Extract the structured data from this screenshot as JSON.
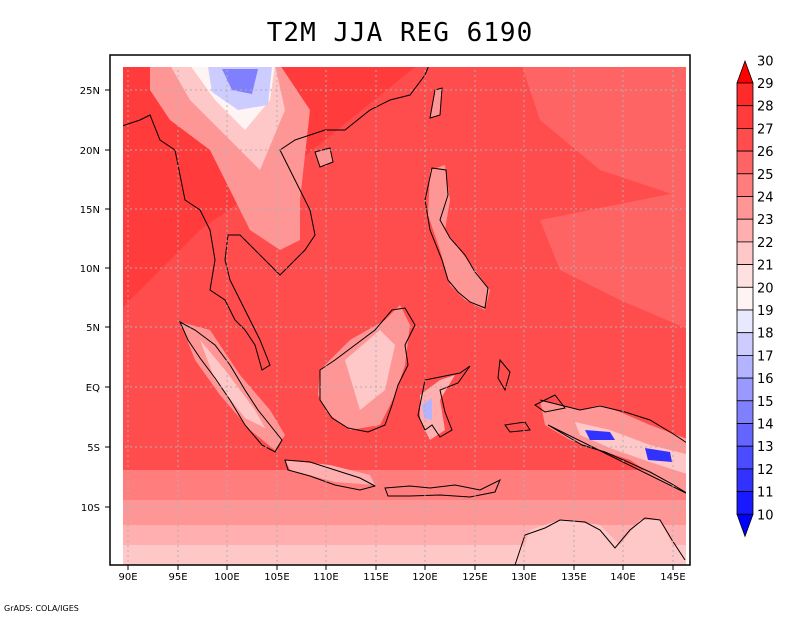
{
  "title": "T2M JJA REG 6190",
  "credit": "GrADS: COLA/IGES",
  "map": {
    "lon_labels": [
      "90E",
      "95E",
      "100E",
      "105E",
      "110E",
      "115E",
      "120E",
      "125E",
      "130E",
      "135E",
      "140E",
      "145E"
    ],
    "lat_labels": [
      "25N",
      "20N",
      "15N",
      "10N",
      "5N",
      "EQ",
      "5S",
      "10S"
    ],
    "colorbar_labels": [
      "30",
      "29",
      "28",
      "27",
      "26",
      "25",
      "24",
      "23",
      "22",
      "21",
      "20",
      "19",
      "18",
      "17",
      "16",
      "15",
      "14",
      "13",
      "12",
      "11",
      "10"
    ],
    "colors": {
      "c29": "#ff2a2a",
      "c28": "#ff3b3b",
      "c27": "#ff4c4c",
      "c26": "#ff6464",
      "c25": "#ff7d7d",
      "c24": "#ff9696",
      "c23": "#ffafaf",
      "c22": "#ffc8c8",
      "c21": "#ffe0e0",
      "c20": "#fff4f4",
      "c19": "#e8e8ff",
      "c18": "#ccccff",
      "c17": "#b3b3ff",
      "c16": "#9999ff",
      "c15": "#8080ff",
      "c14": "#6464ff",
      "c13": "#4b4bff",
      "c12": "#3232ff",
      "c11": "#1919ff",
      "c10": "#0000ff",
      "top_triangle": "#ff0000",
      "bottom_triangle": "#0000ff"
    }
  }
}
